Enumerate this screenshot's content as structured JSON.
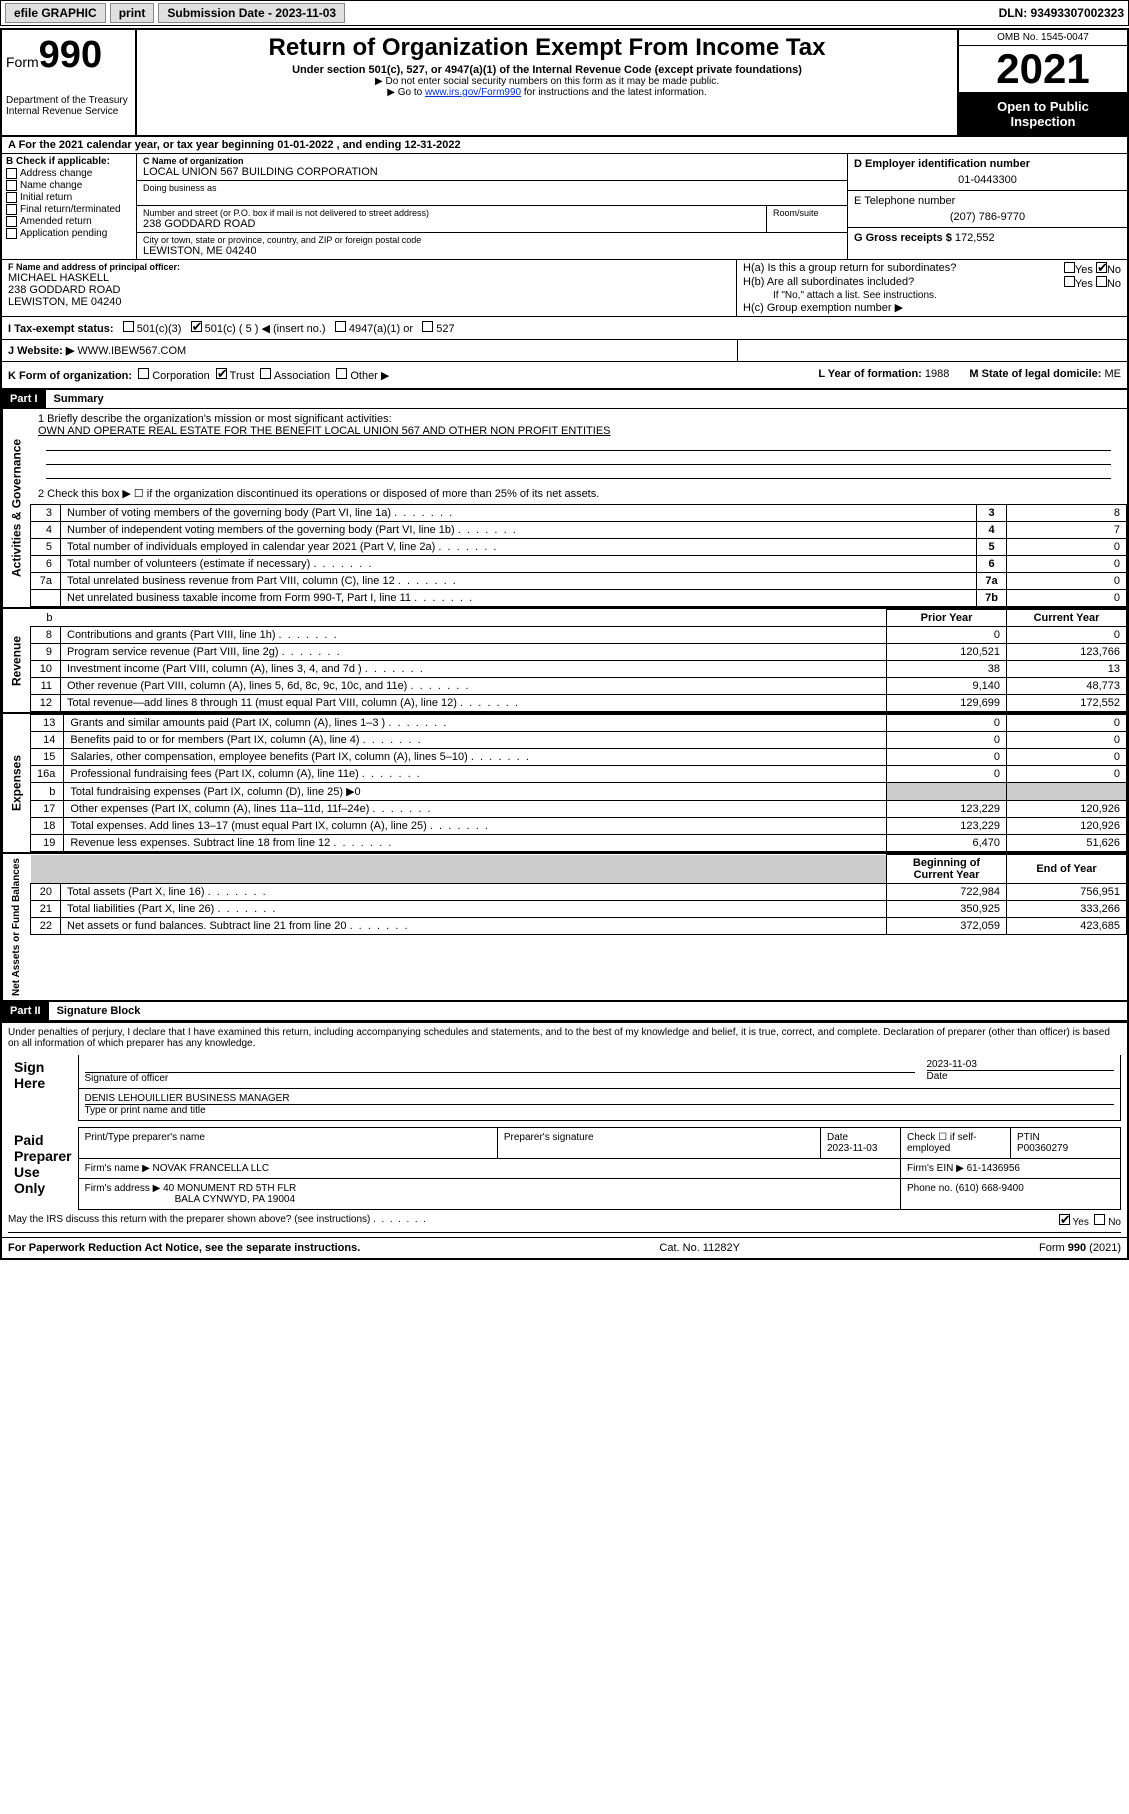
{
  "topbar": {
    "efile": "efile GRAPHIC",
    "print": "print",
    "sub_label": "Submission Date - 2023-11-03",
    "dln": "DLN: 93493307002323"
  },
  "header": {
    "form_prefix": "Form",
    "form_num": "990",
    "dept": "Department of the Treasury",
    "irs": "Internal Revenue Service",
    "title": "Return of Organization Exempt From Income Tax",
    "sub1": "Under section 501(c), 527, or 4947(a)(1) of the Internal Revenue Code (except private foundations)",
    "sub2": "▶ Do not enter social security numbers on this form as it may be made public.",
    "sub3_pre": "▶ Go to ",
    "sub3_link": "www.irs.gov/Form990",
    "sub3_post": " for instructions and the latest information.",
    "omb": "OMB No. 1545-0047",
    "year": "2021",
    "inspect": "Open to Public Inspection"
  },
  "rowA": "A For the 2021 calendar year, or tax year beginning 01-01-2022    , and ending 12-31-2022",
  "colB": {
    "label": "B Check if applicable:",
    "items": [
      "Address change",
      "Name change",
      "Initial return",
      "Final return/terminated",
      "Amended return",
      "Application pending"
    ]
  },
  "colC": {
    "name_label": "C Name of organization",
    "name": "LOCAL UNION 567 BUILDING CORPORATION",
    "dba_label": "Doing business as",
    "street_label": "Number and street (or P.O. box if mail is not delivered to street address)",
    "room_label": "Room/suite",
    "street": "238 GODDARD ROAD",
    "city_label": "City or town, state or province, country, and ZIP or foreign postal code",
    "city": "LEWISTON, ME  04240"
  },
  "colD": {
    "ein_label": "D Employer identification number",
    "ein": "01-0443300",
    "phone_label": "E Telephone number",
    "phone": "(207) 786-9770",
    "gross_label": "G Gross receipts $",
    "gross": "172,552"
  },
  "colF": {
    "label": "F  Name and address of principal officer:",
    "name": "MICHAEL HASKELL",
    "street": "238 GODDARD ROAD",
    "city": "LEWISTON, ME  04240"
  },
  "colH": {
    "a": "H(a)  Is this a group return for subordinates?",
    "b": "H(b)  Are all subordinates included?",
    "b_note": "If \"No,\" attach a list. See instructions.",
    "c": "H(c)  Group exemption number ▶",
    "yes": "Yes",
    "no": "No"
  },
  "rowI": {
    "label": "I   Tax-exempt status:",
    "opt1": "501(c)(3)",
    "opt2": "501(c) ( 5 ) ◀ (insert no.)",
    "opt3": "4947(a)(1) or",
    "opt4": "527"
  },
  "rowJ": {
    "label": "J   Website: ▶",
    "val": "WWW.IBEW567.COM"
  },
  "rowK": {
    "label": "K Form of organization:",
    "opts": [
      "Corporation",
      "Trust",
      "Association",
      "Other ▶"
    ],
    "checked": 1,
    "year_label": "L Year of formation:",
    "year": "1988",
    "state_label": "M State of legal domicile:",
    "state": "ME"
  },
  "part1": {
    "hdr": "Part I",
    "title": "Summary"
  },
  "mission": {
    "q1": "1   Briefly describe the organization's mission or most significant activities:",
    "text": "OWN AND OPERATE REAL ESTATE FOR THE BENEFIT LOCAL UNION 567 AND OTHER NON PROFIT ENTITIES",
    "q2": "2   Check this box ▶ ☐  if the organization discontinued its operations or disposed of more than 25% of its net assets."
  },
  "gov_rows": [
    {
      "n": "3",
      "t": "Number of voting members of the governing body (Part VI, line 1a)",
      "ln": "3",
      "v": "8"
    },
    {
      "n": "4",
      "t": "Number of independent voting members of the governing body (Part VI, line 1b)",
      "ln": "4",
      "v": "7"
    },
    {
      "n": "5",
      "t": "Total number of individuals employed in calendar year 2021 (Part V, line 2a)",
      "ln": "5",
      "v": "0"
    },
    {
      "n": "6",
      "t": "Total number of volunteers (estimate if necessary)",
      "ln": "6",
      "v": "0"
    },
    {
      "n": "7a",
      "t": "Total unrelated business revenue from Part VIII, column (C), line 12",
      "ln": "7a",
      "v": "0"
    },
    {
      "n": "",
      "t": "Net unrelated business taxable income from Form 990-T, Part I, line 11",
      "ln": "7b",
      "v": "0"
    }
  ],
  "rev_hdr": {
    "b": "b",
    "prior": "Prior Year",
    "curr": "Current Year"
  },
  "rev_rows": [
    {
      "n": "8",
      "t": "Contributions and grants (Part VIII, line 1h)",
      "p": "0",
      "c": "0"
    },
    {
      "n": "9",
      "t": "Program service revenue (Part VIII, line 2g)",
      "p": "120,521",
      "c": "123,766"
    },
    {
      "n": "10",
      "t": "Investment income (Part VIII, column (A), lines 3, 4, and 7d )",
      "p": "38",
      "c": "13"
    },
    {
      "n": "11",
      "t": "Other revenue (Part VIII, column (A), lines 5, 6d, 8c, 9c, 10c, and 11e)",
      "p": "9,140",
      "c": "48,773"
    },
    {
      "n": "12",
      "t": "Total revenue—add lines 8 through 11 (must equal Part VIII, column (A), line 12)",
      "p": "129,699",
      "c": "172,552"
    }
  ],
  "exp_rows": [
    {
      "n": "13",
      "t": "Grants and similar amounts paid (Part IX, column (A), lines 1–3 )",
      "p": "0",
      "c": "0"
    },
    {
      "n": "14",
      "t": "Benefits paid to or for members (Part IX, column (A), line 4)",
      "p": "0",
      "c": "0"
    },
    {
      "n": "15",
      "t": "Salaries, other compensation, employee benefits (Part IX, column (A), lines 5–10)",
      "p": "0",
      "c": "0"
    },
    {
      "n": "16a",
      "t": "Professional fundraising fees (Part IX, column (A), line 11e)",
      "p": "0",
      "c": "0"
    },
    {
      "n": "b",
      "t": "Total fundraising expenses (Part IX, column (D), line 25) ▶0",
      "p": "",
      "c": "",
      "grey": true
    },
    {
      "n": "17",
      "t": "Other expenses (Part IX, column (A), lines 11a–11d, 11f–24e)",
      "p": "123,229",
      "c": "120,926"
    },
    {
      "n": "18",
      "t": "Total expenses. Add lines 13–17 (must equal Part IX, column (A), line 25)",
      "p": "123,229",
      "c": "120,926"
    },
    {
      "n": "19",
      "t": "Revenue less expenses. Subtract line 18 from line 12",
      "p": "6,470",
      "c": "51,626"
    }
  ],
  "bal_hdr": {
    "boy": "Beginning of Current Year",
    "eoy": "End of Year"
  },
  "bal_rows": [
    {
      "n": "20",
      "t": "Total assets (Part X, line 16)",
      "p": "722,984",
      "c": "756,951"
    },
    {
      "n": "21",
      "t": "Total liabilities (Part X, line 26)",
      "p": "350,925",
      "c": "333,266"
    },
    {
      "n": "22",
      "t": "Net assets or fund balances. Subtract line 21 from line 20",
      "p": "372,059",
      "c": "423,685"
    }
  ],
  "tabs": {
    "gov": "Activities & Governance",
    "rev": "Revenue",
    "exp": "Expenses",
    "bal": "Net Assets or Fund Balances"
  },
  "part2": {
    "hdr": "Part II",
    "title": "Signature Block"
  },
  "sig": {
    "decl": "Under penalties of perjury, I declare that I have examined this return, including accompanying schedules and statements, and to the best of my knowledge and belief, it is true, correct, and complete. Declaration of preparer (other than officer) is based on all information of which preparer has any knowledge.",
    "sign_here": "Sign Here",
    "sig_label": "Signature of officer",
    "date": "2023-11-03",
    "date_label": "Date",
    "name": "DENIS LEHOUILLIER  BUSINESS MANAGER",
    "name_label": "Type or print name and title",
    "paid": "Paid Preparer Use Only",
    "prep_name_label": "Print/Type preparer's name",
    "prep_sig_label": "Preparer's signature",
    "prep_date": "2023-11-03",
    "check_label": "Check ☐ if self-employed",
    "ptin_label": "PTIN",
    "ptin": "P00360279",
    "firm_name_label": "Firm's name    ▶",
    "firm_name": "NOVAK FRANCELLA LLC",
    "firm_ein_label": "Firm's EIN ▶",
    "firm_ein": "61-1436956",
    "firm_addr_label": "Firm's address ▶",
    "firm_addr": "40 MONUMENT RD 5TH FLR",
    "firm_city": "BALA CYNWYD, PA  19004",
    "firm_phone_label": "Phone no.",
    "firm_phone": "(610) 668-9400",
    "discuss": "May the IRS discuss this return with the preparer shown above? (see instructions)"
  },
  "footer": {
    "left": "For Paperwork Reduction Act Notice, see the separate instructions.",
    "mid": "Cat. No. 11282Y",
    "right": "Form 990 (2021)"
  }
}
